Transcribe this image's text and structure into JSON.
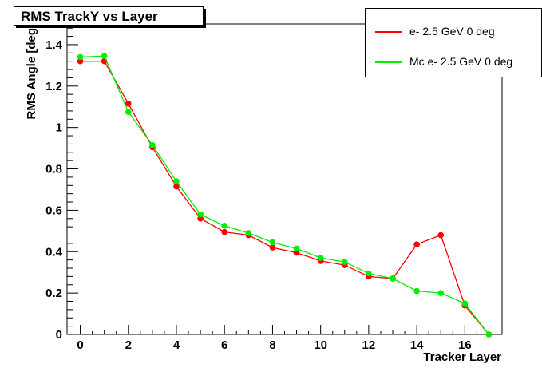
{
  "chart_data": {
    "type": "line",
    "title": "RMS TrackY vs Layer",
    "xlabel": "Tracker Layer",
    "ylabel": "RMS Angle [deg]",
    "xlim": [
      -0.55,
      17.55
    ],
    "ylim": [
      0,
      1.5
    ],
    "x_ticks": [
      "0",
      "2",
      "4",
      "6",
      "8",
      "10",
      "12",
      "14",
      "16"
    ],
    "y_ticks": [
      "0",
      "0.2",
      "0.4",
      "0.6",
      "0.8",
      "1",
      "1.2",
      "1.4"
    ],
    "legend_position": "top-right",
    "x": [
      0,
      1,
      2,
      3,
      4,
      5,
      6,
      7,
      8,
      9,
      10,
      11,
      12,
      13,
      14,
      15,
      16,
      17
    ],
    "series": [
      {
        "name": "e- 2.5 GeV 0 deg",
        "color": "#ff0000",
        "values": [
          1.32,
          1.32,
          1.115,
          0.905,
          0.715,
          0.56,
          0.495,
          0.48,
          0.42,
          0.395,
          0.355,
          0.335,
          0.28,
          0.27,
          0.435,
          0.48,
          0.14,
          0.0
        ]
      },
      {
        "name": "Mc e- 2.5 GeV 0 deg",
        "color": "#00ee00",
        "values": [
          1.34,
          1.345,
          1.075,
          0.915,
          0.74,
          0.58,
          0.525,
          0.49,
          0.445,
          0.415,
          0.37,
          0.35,
          0.295,
          0.27,
          0.21,
          0.2,
          0.15,
          0.0
        ]
      }
    ]
  }
}
